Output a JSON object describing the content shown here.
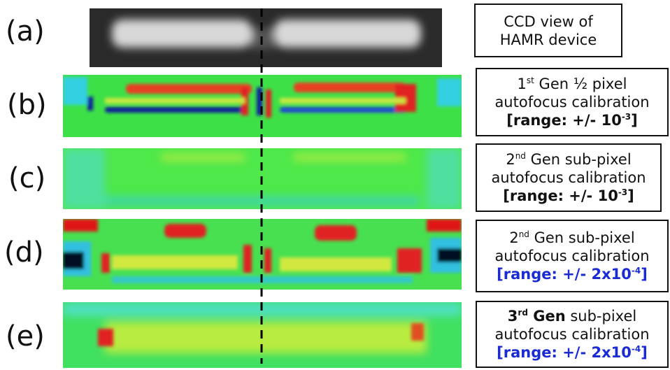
{
  "panels": [
    {
      "label": "(a)",
      "lines": [
        [
          "CCD view of"
        ],
        [
          "HAMR device"
        ]
      ]
    },
    {
      "label": "(b)",
      "lines": [
        [
          "1",
          "st",
          " Gen ½ pixel"
        ],
        [
          "autofocus calibration"
        ],
        [
          "[range: +/- 10",
          "-3",
          "]"
        ]
      ]
    },
    {
      "label": "(c)",
      "lines": [
        [
          "2",
          "nd",
          " Gen sub-pixel"
        ],
        [
          "autofocus calibration"
        ],
        [
          "[range: +/- 10",
          "-3",
          "]"
        ]
      ]
    },
    {
      "label": "(d)",
      "lines": [
        [
          "2",
          "nd",
          " Gen sub-pixel"
        ],
        [
          "autofocus calibration"
        ],
        [
          "[range: +/- 2x10",
          "-4",
          "]"
        ]
      ]
    },
    {
      "label": "(e)",
      "lines": [
        [
          "3",
          "rd",
          " Gen",
          " sub-pixel"
        ],
        [
          "autofocus calibration"
        ],
        [
          "[range: +/- 2x10",
          "-4",
          "]"
        ]
      ]
    }
  ]
}
